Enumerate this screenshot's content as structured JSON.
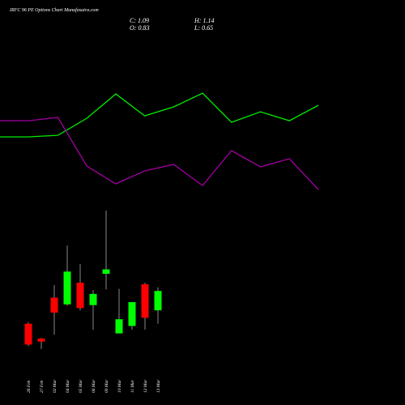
{
  "chart_data": [
    {
      "type": "line",
      "title": "IRFC 96 PE Options Chart Munafasutra.com",
      "categories": [
        null,
        null,
        null,
        null,
        null,
        null,
        null,
        null,
        null,
        null,
        null,
        null
      ],
      "ylim": [
        0,
        150
      ],
      "series": [
        {
          "name": null,
          "color": "#00ee00",
          "values": [
            81,
            81,
            83,
            104,
            134,
            107,
            118,
            135,
            99,
            112,
            101,
            120
          ]
        },
        {
          "name": null,
          "color": "#a000a0",
          "values": [
            101,
            101,
            105,
            45,
            23,
            39,
            47,
            21,
            64,
            44,
            54,
            16
          ]
        }
      ]
    },
    {
      "type": "candlestick",
      "annotations": [
        "C: 1.09",
        "H: 1.14",
        "O: 0.83",
        "L: 0.65"
      ],
      "categories": [
        "26 Feb",
        "27 Feb",
        "02 Mar",
        "04 Mar",
        "05 Mar",
        "06 Mar",
        "09 Mar",
        "10 Mar",
        "11 Mar",
        "12 Mar",
        "13 Mar"
      ],
      "open": [
        0.65,
        0.45,
        1.0,
        0.91,
        1.2,
        0.9,
        1.32,
        0.52,
        0.62,
        1.18,
        0.83
      ],
      "high": [
        0.67,
        0.46,
        1.17,
        1.7,
        1.45,
        1.1,
        2.17,
        1.12,
        0.94,
        1.2,
        1.14
      ],
      "low": [
        0.35,
        0.31,
        0.5,
        0.89,
        0.83,
        0.57,
        1.11,
        0.52,
        0.57,
        0.57,
        0.65
      ],
      "close": [
        0.37,
        0.41,
        0.8,
        1.35,
        0.86,
        1.05,
        1.38,
        0.71,
        0.94,
        0.73,
        1.09
      ],
      "up_color": "#00ff00",
      "down_color": "#ff0000",
      "ylim": [
        0.2,
        2.3
      ]
    }
  ]
}
